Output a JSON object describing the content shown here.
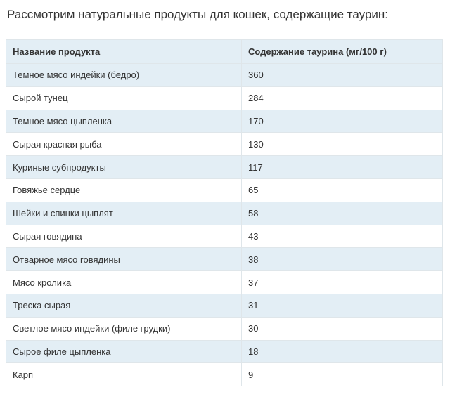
{
  "intro_text": "Рассмотрим натуральные продукты для кошек, содержащие таурин:",
  "table": {
    "headers": [
      "Название продукта",
      "Содержание таурина (мг/100 г)"
    ],
    "rows": [
      [
        "Темное мясо индейки (бедро)",
        "360"
      ],
      [
        "Сырой тунец",
        "284"
      ],
      [
        "Темное мясо цыпленка",
        "170"
      ],
      [
        "Сырая красная рыба",
        "130"
      ],
      [
        "Куриные субпродукты",
        "117"
      ],
      [
        "Говяжье сердце",
        "65"
      ],
      [
        "Шейки и спинки цыплят",
        "58"
      ],
      [
        "Сырая говядина",
        "43"
      ],
      [
        "Отварное мясо говядины",
        "38"
      ],
      [
        "Мясо кролика",
        "37"
      ],
      [
        "Треска сырая",
        "31"
      ],
      [
        "Светлое мясо индейки (филе грудки)",
        "30"
      ],
      [
        "Сырое филе цыпленка",
        "18"
      ],
      [
        "Карп",
        "9"
      ]
    ]
  },
  "colors": {
    "stripe": "#e3eef5",
    "border": "#dfe6ea",
    "text": "#333333"
  }
}
